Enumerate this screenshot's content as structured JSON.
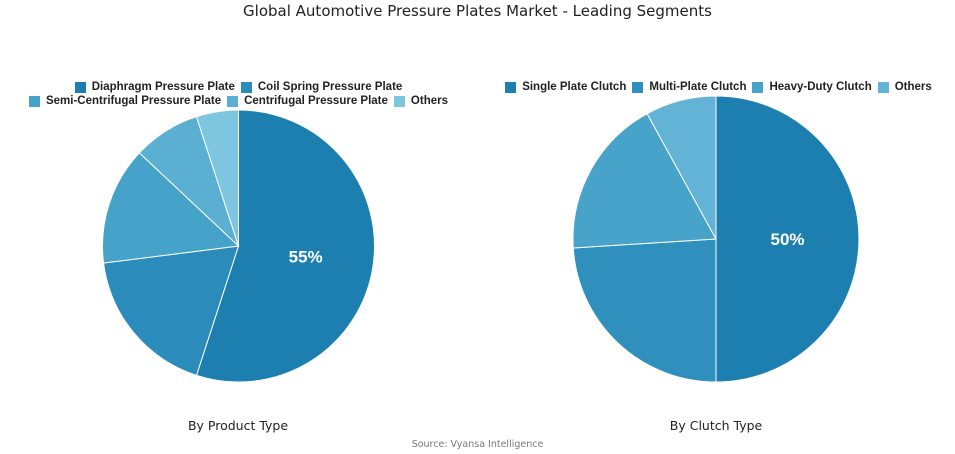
{
  "title": "Global Automotive Pressure Plates Market - Leading Segments",
  "source": "Source: Vyansa Intelligence",
  "chart_data": [
    {
      "type": "pie",
      "caption": "By Product Type",
      "labels": [
        "Diaphragm Pressure Plate",
        "Coil Spring Pressure Plate",
        "Semi-Centrifugal Pressure Plate",
        "Centrifugal Pressure Plate",
        "Others"
      ],
      "values": [
        55,
        18,
        14,
        8,
        5
      ],
      "colors": [
        "#1c7fb0",
        "#2b8cbb",
        "#45a2c8",
        "#5aafd2",
        "#7ec6e0"
      ],
      "data_labels": [
        "55%",
        "",
        "",
        "",
        ""
      ],
      "legend_rows": [
        [
          0,
          1
        ],
        [
          2,
          3,
          4
        ]
      ],
      "legend_position": "top"
    },
    {
      "type": "pie",
      "caption": "By Clutch Type",
      "labels": [
        "Single Plate Clutch",
        "Multi-Plate Clutch",
        "Heavy-Duty Clutch",
        "Others"
      ],
      "values": [
        50,
        24,
        18,
        8
      ],
      "colors": [
        "#1c7fb0",
        "#2f8fbd",
        "#47a3c9",
        "#62b3d5"
      ],
      "data_labels": [
        "50%",
        "",
        "",
        ""
      ],
      "legend_rows": [
        [
          0,
          1,
          2,
          3
        ]
      ],
      "legend_position": "top"
    }
  ]
}
